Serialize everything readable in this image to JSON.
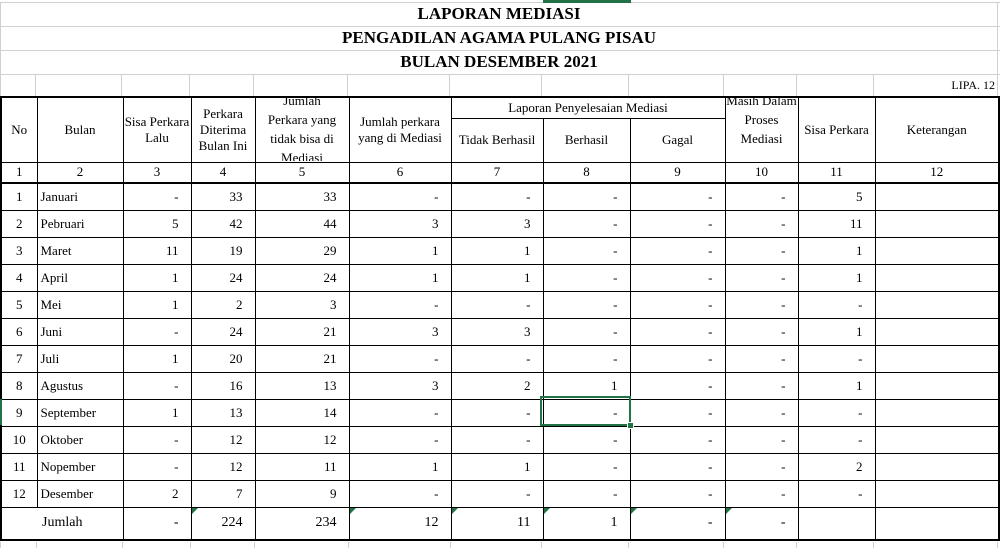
{
  "titles": {
    "line1": "LAPORAN MEDIASI",
    "line2": "PENGADILAN AGAMA PULANG PISAU",
    "line3": "BULAN DESEMBER 2021"
  },
  "form_code": "LIPA. 12",
  "colors": {
    "selection_green": "#217346",
    "gridline": "#d0d0d0"
  },
  "table": {
    "headers": {
      "no": "No",
      "bulan": "Bulan",
      "sisa_lalu": "Sisa Perkara Lalu",
      "diterima": "Perkara Diterima Bulan Ini",
      "tidak_bisa": "Jumlah\nPerkara yang\ntidak bisa di\nMediasi",
      "dimediasi": "Jumlah perkara yang di Mediasi",
      "laporan": "Laporan Penyelesaian Mediasi",
      "tidak_berhasil": "Tidak Berhasil",
      "berhasil": "Berhasil",
      "gagal": "Gagal",
      "proses": "Masih Dalam Proses Mediasi",
      "sisa": "Sisa Perkara",
      "keterangan": "Keterangan"
    },
    "column_numbers": [
      "1",
      "2",
      "3",
      "4",
      "5",
      "6",
      "7",
      "8",
      "9",
      "10",
      "11",
      "12"
    ],
    "rows": [
      {
        "no": "1",
        "month": "Januari",
        "values": [
          "-",
          "33",
          "33",
          "-",
          "-",
          "-",
          "-",
          "-",
          "5",
          ""
        ]
      },
      {
        "no": "2",
        "month": "Pebruari",
        "values": [
          "5",
          "42",
          "44",
          "3",
          "3",
          "-",
          "-",
          "-",
          "11",
          ""
        ]
      },
      {
        "no": "3",
        "month": "Maret",
        "values": [
          "11",
          "19",
          "29",
          "1",
          "1",
          "-",
          "-",
          "-",
          "1",
          ""
        ]
      },
      {
        "no": "4",
        "month": "April",
        "values": [
          "1",
          "24",
          "24",
          "1",
          "1",
          "-",
          "-",
          "-",
          "1",
          ""
        ]
      },
      {
        "no": "5",
        "month": "Mei",
        "values": [
          "1",
          "2",
          "3",
          "-",
          "-",
          "-",
          "-",
          "-",
          "-",
          ""
        ]
      },
      {
        "no": "6",
        "month": "Juni",
        "values": [
          "-",
          "24",
          "21",
          "3",
          "3",
          "-",
          "-",
          "-",
          "1",
          ""
        ]
      },
      {
        "no": "7",
        "month": "Juli",
        "values": [
          "1",
          "20",
          "21",
          "-",
          "-",
          "-",
          "-",
          "-",
          "-",
          ""
        ]
      },
      {
        "no": "8",
        "month": "Agustus",
        "values": [
          "-",
          "16",
          "13",
          "3",
          "2",
          "1",
          "-",
          "-",
          "1",
          ""
        ]
      },
      {
        "no": "9",
        "month": "September",
        "values": [
          "1",
          "13",
          "14",
          "-",
          "-",
          "-",
          "-",
          "-",
          "-",
          ""
        ]
      },
      {
        "no": "10",
        "month": "Oktober",
        "values": [
          "-",
          "12",
          "12",
          "-",
          "-",
          "-",
          "-",
          "-",
          "-",
          ""
        ]
      },
      {
        "no": "11",
        "month": "Nopember",
        "values": [
          "-",
          "12",
          "11",
          "1",
          "1",
          "-",
          "-",
          "-",
          "2",
          ""
        ]
      },
      {
        "no": "12",
        "month": "Desember",
        "values": [
          "2",
          "7",
          "9",
          "-",
          "-",
          "-",
          "-",
          "-",
          "-",
          ""
        ]
      }
    ],
    "total_row": {
      "label": "Jumlah",
      "values": [
        "-",
        "224",
        "234",
        "12",
        "11",
        "1",
        "-",
        "-",
        "",
        ""
      ],
      "error_marker_indexes": [
        1,
        3,
        4,
        5,
        6,
        7
      ]
    }
  },
  "selection": {
    "month": "September",
    "column": "Berhasil",
    "value": "-"
  }
}
